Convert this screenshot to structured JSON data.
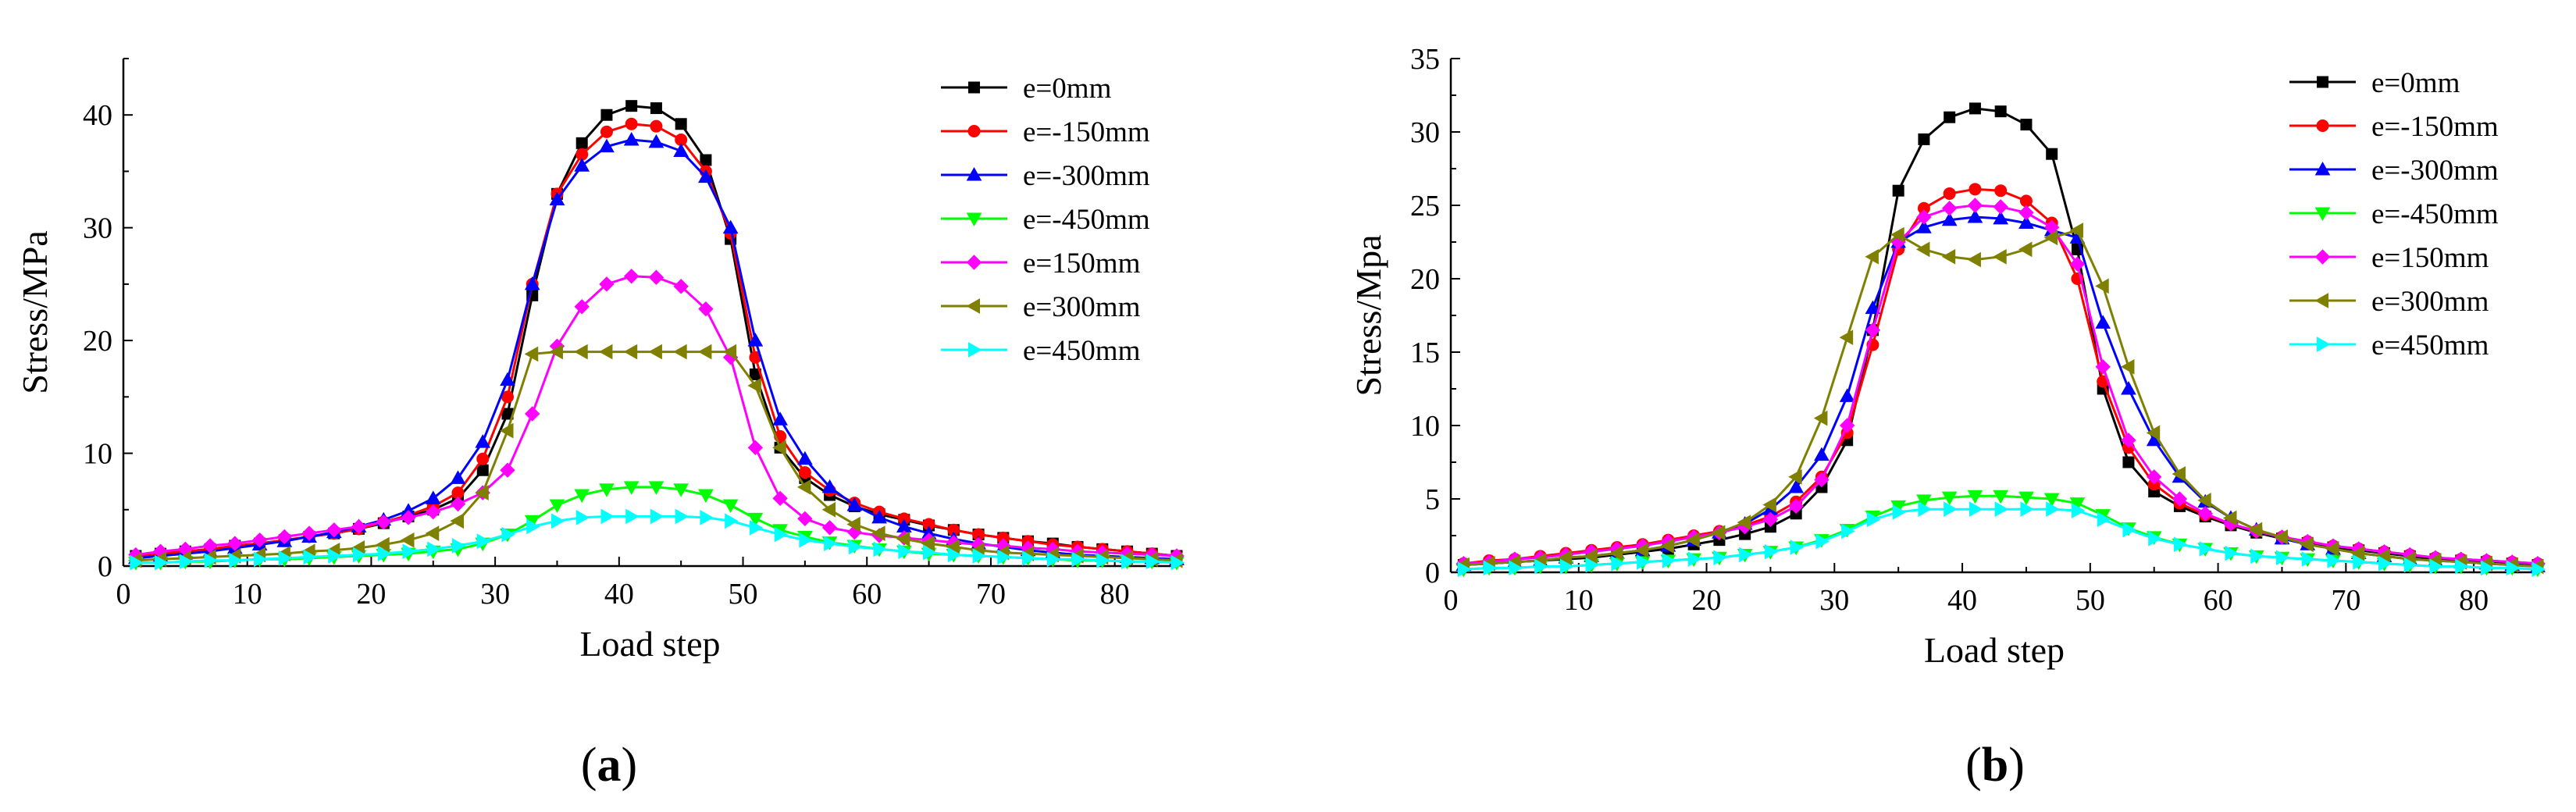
{
  "panels": [
    {
      "id": "a",
      "label_open": "(",
      "label_letter": "a",
      "label_close": ")"
    },
    {
      "id": "b",
      "label_open": "(",
      "label_letter": "b",
      "label_close": ")"
    }
  ],
  "series_colors": [
    "#000000",
    "#ff0000",
    "#0000ff",
    "#00ff00",
    "#ff00ff",
    "#808000",
    "#00ffff"
  ],
  "chart_data": [
    {
      "type": "line",
      "panel": "a",
      "title": "",
      "xlabel": "Load step",
      "ylabel": "Stress/MPa",
      "xlim": [
        0,
        85
      ],
      "ylim": [
        0,
        45
      ],
      "xticks": [
        0,
        10,
        20,
        30,
        40,
        50,
        60,
        70,
        80
      ],
      "yticks": [
        0,
        10,
        20,
        30,
        40
      ],
      "legend_position": "top-right",
      "grid": false,
      "x": [
        1,
        3,
        5,
        7,
        9,
        11,
        13,
        15,
        17,
        19,
        21,
        23,
        25,
        27,
        29,
        31,
        33,
        35,
        37,
        39,
        41,
        43,
        45,
        47,
        49,
        51,
        53,
        55,
        57,
        59,
        61,
        63,
        65,
        67,
        69,
        71,
        73,
        75,
        77,
        79,
        81,
        83,
        85
      ],
      "series": [
        {
          "name": "e=0mm",
          "marker": "square",
          "color": "#000000",
          "values": [
            0.9,
            1.1,
            1.3,
            1.5,
            1.8,
            2.0,
            2.3,
            2.6,
            2.9,
            3.3,
            3.8,
            4.4,
            5.0,
            6.0,
            8.5,
            13.5,
            24.0,
            33.0,
            37.5,
            40.0,
            40.8,
            40.6,
            39.2,
            36.0,
            29.0,
            17.0,
            10.5,
            7.8,
            6.3,
            5.3,
            4.6,
            4.1,
            3.6,
            3.2,
            2.8,
            2.5,
            2.2,
            2.0,
            1.7,
            1.5,
            1.3,
            1.1,
            0.9
          ]
        },
        {
          "name": "e=-150mm",
          "marker": "circle",
          "color": "#ff0000",
          "values": [
            0.9,
            1.1,
            1.3,
            1.5,
            1.8,
            2.0,
            2.3,
            2.6,
            2.9,
            3.3,
            3.9,
            4.5,
            5.3,
            6.5,
            9.5,
            15.0,
            25.0,
            33.0,
            36.5,
            38.5,
            39.2,
            39.0,
            37.8,
            35.0,
            29.5,
            18.5,
            11.5,
            8.3,
            6.7,
            5.6,
            4.8,
            4.2,
            3.7,
            3.2,
            2.8,
            2.5,
            2.2,
            1.9,
            1.7,
            1.5,
            1.3,
            1.1,
            0.9
          ]
        },
        {
          "name": "e=-300mm",
          "marker": "triangle-up",
          "color": "#0000ff",
          "values": [
            0.7,
            0.9,
            1.1,
            1.3,
            1.6,
            1.9,
            2.2,
            2.6,
            3.0,
            3.5,
            4.1,
            4.9,
            6.0,
            7.8,
            11.0,
            16.5,
            25.0,
            32.5,
            35.5,
            37.2,
            37.8,
            37.6,
            36.8,
            34.5,
            30.0,
            20.0,
            13.0,
            9.5,
            7.0,
            5.4,
            4.3,
            3.5,
            2.9,
            2.4,
            2.0,
            1.7,
            1.4,
            1.2,
            1.0,
            0.9,
            0.8,
            0.7,
            0.6
          ]
        },
        {
          "name": "e=-450mm",
          "marker": "triangle-down",
          "color": "#00ff00",
          "values": [
            0.3,
            0.3,
            0.4,
            0.4,
            0.5,
            0.6,
            0.6,
            0.7,
            0.8,
            0.9,
            1.0,
            1.1,
            1.3,
            1.5,
            2.0,
            2.8,
            4.0,
            5.4,
            6.3,
            6.8,
            7.0,
            7.0,
            6.8,
            6.3,
            5.4,
            4.2,
            3.2,
            2.6,
            2.1,
            1.8,
            1.5,
            1.3,
            1.1,
            1.0,
            0.9,
            0.8,
            0.7,
            0.6,
            0.5,
            0.5,
            0.4,
            0.4,
            0.3
          ]
        },
        {
          "name": "e=150mm",
          "marker": "diamond",
          "color": "#ff00ff",
          "values": [
            1.0,
            1.3,
            1.5,
            1.8,
            2.0,
            2.3,
            2.6,
            2.9,
            3.2,
            3.5,
            3.9,
            4.3,
            4.8,
            5.5,
            6.5,
            8.5,
            13.5,
            19.5,
            23.0,
            25.0,
            25.7,
            25.6,
            24.8,
            22.8,
            18.5,
            10.5,
            6.0,
            4.2,
            3.4,
            3.0,
            2.7,
            2.5,
            2.3,
            2.1,
            1.9,
            1.8,
            1.6,
            1.5,
            1.3,
            1.2,
            1.1,
            1.0,
            0.9
          ]
        },
        {
          "name": "e=300mm",
          "marker": "triangle-left",
          "color": "#808000",
          "values": [
            0.5,
            0.6,
            0.7,
            0.8,
            0.9,
            1.0,
            1.1,
            1.3,
            1.4,
            1.6,
            1.9,
            2.3,
            2.9,
            4.0,
            6.5,
            12.0,
            18.8,
            19.0,
            19.0,
            19.0,
            19.0,
            19.0,
            19.0,
            19.0,
            19.0,
            16.0,
            10.5,
            7.0,
            5.0,
            3.7,
            2.9,
            2.4,
            2.0,
            1.7,
            1.4,
            1.2,
            1.1,
            1.0,
            0.9,
            0.8,
            0.7,
            0.6,
            0.5
          ]
        },
        {
          "name": "e=450mm",
          "marker": "triangle-right",
          "color": "#00ffff",
          "values": [
            0.3,
            0.3,
            0.4,
            0.5,
            0.5,
            0.6,
            0.7,
            0.8,
            0.9,
            1.0,
            1.1,
            1.3,
            1.5,
            1.8,
            2.2,
            2.8,
            3.5,
            4.0,
            4.3,
            4.4,
            4.4,
            4.4,
            4.4,
            4.3,
            4.0,
            3.4,
            2.8,
            2.3,
            2.0,
            1.7,
            1.5,
            1.3,
            1.2,
            1.0,
            0.9,
            0.8,
            0.7,
            0.6,
            0.6,
            0.5,
            0.4,
            0.4,
            0.3
          ]
        }
      ]
    },
    {
      "type": "line",
      "panel": "b",
      "title": "",
      "xlabel": "Load step",
      "ylabel": "Stress/Mpa",
      "xlim": [
        0,
        85
      ],
      "ylim": [
        0,
        35
      ],
      "xticks": [
        0,
        10,
        20,
        30,
        40,
        50,
        60,
        70,
        80
      ],
      "yticks": [
        0,
        5,
        10,
        15,
        20,
        25,
        30,
        35
      ],
      "legend_position": "top-right",
      "grid": false,
      "x": [
        1,
        3,
        5,
        7,
        9,
        11,
        13,
        15,
        17,
        19,
        21,
        23,
        25,
        27,
        29,
        31,
        33,
        35,
        37,
        39,
        41,
        43,
        45,
        47,
        49,
        51,
        53,
        55,
        57,
        59,
        61,
        63,
        65,
        67,
        69,
        71,
        73,
        75,
        77,
        79,
        81,
        83,
        85
      ],
      "series": [
        {
          "name": "e=0mm",
          "marker": "square",
          "color": "#000000",
          "values": [
            0.5,
            0.6,
            0.7,
            0.8,
            0.9,
            1.0,
            1.2,
            1.4,
            1.6,
            1.9,
            2.2,
            2.6,
            3.1,
            4.0,
            5.8,
            9.0,
            16.5,
            26.0,
            29.5,
            31.0,
            31.6,
            31.4,
            30.5,
            28.5,
            22.0,
            12.5,
            7.5,
            5.5,
            4.5,
            3.8,
            3.2,
            2.7,
            2.3,
            2.0,
            1.7,
            1.5,
            1.3,
            1.1,
            0.9,
            0.8,
            0.7,
            0.6,
            0.5
          ]
        },
        {
          "name": "e=-150mm",
          "marker": "circle",
          "color": "#ff0000",
          "values": [
            0.6,
            0.8,
            0.9,
            1.1,
            1.3,
            1.5,
            1.7,
            1.9,
            2.2,
            2.5,
            2.8,
            3.2,
            3.8,
            4.8,
            6.5,
            9.5,
            15.5,
            22.0,
            24.8,
            25.8,
            26.1,
            26.0,
            25.3,
            23.8,
            20.0,
            13.0,
            8.5,
            6.0,
            4.7,
            3.9,
            3.3,
            2.8,
            2.4,
            2.1,
            1.8,
            1.6,
            1.4,
            1.2,
            1.0,
            0.9,
            0.8,
            0.7,
            0.6
          ]
        },
        {
          "name": "e=-300mm",
          "marker": "triangle-up",
          "color": "#0000ff",
          "values": [
            0.5,
            0.6,
            0.7,
            0.8,
            1.0,
            1.1,
            1.3,
            1.5,
            1.8,
            2.2,
            2.7,
            3.3,
            4.3,
            5.8,
            8.0,
            12.0,
            18.0,
            22.5,
            23.5,
            24.0,
            24.2,
            24.1,
            23.8,
            23.3,
            22.8,
            17.0,
            12.5,
            9.0,
            6.5,
            4.8,
            3.7,
            2.9,
            2.3,
            1.9,
            1.6,
            1.3,
            1.1,
            0.9,
            0.8,
            0.7,
            0.6,
            0.5,
            0.4
          ]
        },
        {
          "name": "e=-450mm",
          "marker": "triangle-down",
          "color": "#00ff00",
          "values": [
            0.2,
            0.3,
            0.3,
            0.4,
            0.4,
            0.5,
            0.6,
            0.7,
            0.8,
            0.9,
            1.0,
            1.2,
            1.4,
            1.7,
            2.2,
            2.9,
            3.8,
            4.5,
            4.9,
            5.1,
            5.2,
            5.2,
            5.1,
            5.0,
            4.7,
            3.9,
            3.0,
            2.4,
            1.9,
            1.6,
            1.3,
            1.1,
            1.0,
            0.9,
            0.8,
            0.7,
            0.6,
            0.5,
            0.4,
            0.4,
            0.3,
            0.3,
            0.2
          ]
        },
        {
          "name": "e=150mm",
          "marker": "diamond",
          "color": "#ff00ff",
          "values": [
            0.6,
            0.7,
            0.9,
            1.0,
            1.2,
            1.4,
            1.6,
            1.8,
            2.1,
            2.4,
            2.7,
            3.1,
            3.6,
            4.5,
            6.3,
            10.0,
            16.5,
            22.5,
            24.2,
            24.8,
            25.0,
            24.9,
            24.5,
            23.5,
            21.0,
            14.0,
            9.0,
            6.5,
            5.0,
            4.0,
            3.3,
            2.8,
            2.4,
            2.1,
            1.8,
            1.6,
            1.4,
            1.2,
            1.0,
            0.9,
            0.8,
            0.7,
            0.6
          ]
        },
        {
          "name": "e=300mm",
          "marker": "triangle-left",
          "color": "#808000",
          "values": [
            0.5,
            0.6,
            0.7,
            0.8,
            1.0,
            1.1,
            1.3,
            1.5,
            1.8,
            2.2,
            2.7,
            3.4,
            4.6,
            6.5,
            10.5,
            16.0,
            21.5,
            23.0,
            22.0,
            21.5,
            21.3,
            21.5,
            22.0,
            22.8,
            23.3,
            19.5,
            14.0,
            9.5,
            6.7,
            4.9,
            3.7,
            2.9,
            2.4,
            1.9,
            1.6,
            1.3,
            1.1,
            0.9,
            0.8,
            0.7,
            0.6,
            0.5,
            0.4
          ]
        },
        {
          "name": "e=450mm",
          "marker": "triangle-right",
          "color": "#00ffff",
          "values": [
            0.2,
            0.3,
            0.3,
            0.4,
            0.4,
            0.5,
            0.6,
            0.7,
            0.8,
            0.9,
            1.0,
            1.2,
            1.4,
            1.7,
            2.1,
            2.8,
            3.6,
            4.1,
            4.3,
            4.3,
            4.3,
            4.3,
            4.3,
            4.3,
            4.2,
            3.6,
            2.9,
            2.3,
            1.9,
            1.6,
            1.3,
            1.1,
            1.0,
            0.9,
            0.8,
            0.7,
            0.6,
            0.5,
            0.4,
            0.4,
            0.3,
            0.3,
            0.2
          ]
        }
      ]
    }
  ]
}
